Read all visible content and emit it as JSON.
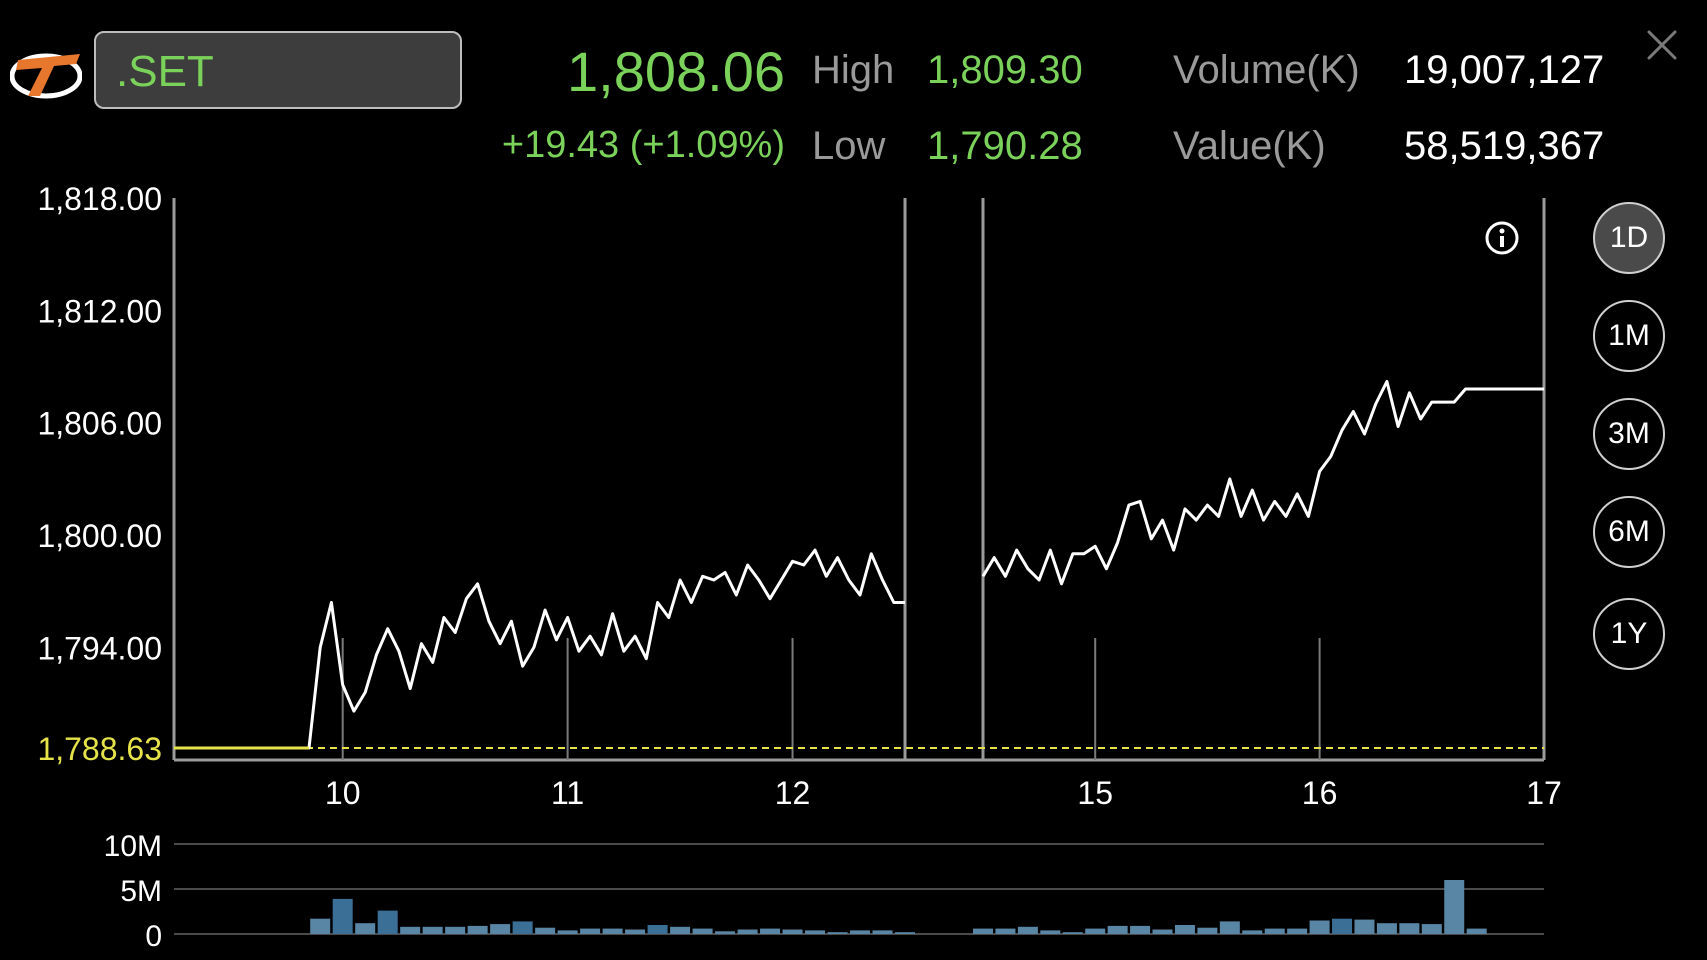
{
  "header": {
    "symbol": ".SET",
    "last_price": "1,808.06",
    "change": "+19.43 (+1.09%)",
    "high_label": "High",
    "high_value": "1,809.30",
    "low_label": "Low",
    "low_value": "1,790.28",
    "volume_label": "Volume(K)",
    "volume_value": "19,007,127",
    "value_label": "Value(K)",
    "value_value": "58,519,367"
  },
  "periods": [
    "1D",
    "1M",
    "3M",
    "6M",
    "1Y"
  ],
  "active_period": "1D",
  "colors": {
    "up": "#7bd25a",
    "prev_close": "#e6e34a",
    "line": "#ffffff",
    "volume": "#3b6f96",
    "volume_hi": "#5a86a6"
  },
  "chart_data": [
    {
      "type": "line",
      "y_ticks": [
        "1,818.00",
        "1,812.00",
        "1,806.00",
        "1,800.00",
        "1,794.00"
      ],
      "prev_close_label": "1,788.63",
      "ylim": [
        1788.63,
        1818.0
      ],
      "x_ticks": [
        {
          "label": "10",
          "hour": 10
        },
        {
          "label": "11",
          "hour": 11
        },
        {
          "label": "12",
          "hour": 12
        },
        {
          "label": "15",
          "hour": 15
        },
        {
          "label": "16",
          "hour": 16
        },
        {
          "label": "17",
          "hour": 17
        }
      ],
      "session_break": [
        12.5,
        14.5
      ],
      "series": [
        {
          "points": [
            [
              9.25,
              1788.63
            ],
            [
              9.85,
              1788.63
            ],
            [
              9.9,
              1794.0
            ],
            [
              9.95,
              1796.4
            ],
            [
              10.0,
              1792.0
            ],
            [
              10.05,
              1790.6
            ],
            [
              10.1,
              1791.6
            ],
            [
              10.15,
              1793.6
            ],
            [
              10.2,
              1795.0
            ],
            [
              10.25,
              1793.8
            ],
            [
              10.3,
              1791.8
            ],
            [
              10.35,
              1794.2
            ],
            [
              10.4,
              1793.2
            ],
            [
              10.45,
              1795.6
            ],
            [
              10.5,
              1794.8
            ],
            [
              10.55,
              1796.6
            ],
            [
              10.6,
              1797.4
            ],
            [
              10.65,
              1795.4
            ],
            [
              10.7,
              1794.2
            ],
            [
              10.75,
              1795.4
            ],
            [
              10.8,
              1793.0
            ],
            [
              10.85,
              1794.0
            ],
            [
              10.9,
              1796.0
            ],
            [
              10.95,
              1794.4
            ],
            [
              11.0,
              1795.6
            ],
            [
              11.05,
              1793.8
            ],
            [
              11.1,
              1794.6
            ],
            [
              11.15,
              1793.6
            ],
            [
              11.2,
              1795.8
            ],
            [
              11.25,
              1793.8
            ],
            [
              11.3,
              1794.6
            ],
            [
              11.35,
              1793.4
            ],
            [
              11.4,
              1796.4
            ],
            [
              11.45,
              1795.6
            ],
            [
              11.5,
              1797.6
            ],
            [
              11.55,
              1796.4
            ],
            [
              11.6,
              1797.8
            ],
            [
              11.65,
              1797.6
            ],
            [
              11.7,
              1798.0
            ],
            [
              11.75,
              1796.8
            ],
            [
              11.8,
              1798.4
            ],
            [
              11.85,
              1797.6
            ],
            [
              11.9,
              1796.6
            ],
            [
              11.95,
              1797.6
            ],
            [
              12.0,
              1798.6
            ],
            [
              12.05,
              1798.4
            ],
            [
              12.1,
              1799.2
            ],
            [
              12.15,
              1797.8
            ],
            [
              12.2,
              1798.8
            ],
            [
              12.25,
              1797.6
            ],
            [
              12.3,
              1796.8
            ],
            [
              12.35,
              1799.0
            ],
            [
              12.4,
              1797.6
            ],
            [
              12.45,
              1796.4
            ],
            [
              12.5,
              1796.4
            ]
          ]
        },
        {
          "points": [
            [
              14.5,
              1797.8
            ],
            [
              14.55,
              1798.8
            ],
            [
              14.6,
              1797.8
            ],
            [
              14.65,
              1799.2
            ],
            [
              14.7,
              1798.2
            ],
            [
              14.75,
              1797.6
            ],
            [
              14.8,
              1799.2
            ],
            [
              14.85,
              1797.4
            ],
            [
              14.9,
              1799.0
            ],
            [
              14.95,
              1799.0
            ],
            [
              15.0,
              1799.4
            ],
            [
              15.05,
              1798.2
            ],
            [
              15.1,
              1799.6
            ],
            [
              15.15,
              1801.6
            ],
            [
              15.2,
              1801.8
            ],
            [
              15.25,
              1799.8
            ],
            [
              15.3,
              1800.8
            ],
            [
              15.35,
              1799.2
            ],
            [
              15.4,
              1801.4
            ],
            [
              15.45,
              1800.8
            ],
            [
              15.5,
              1801.6
            ],
            [
              15.55,
              1801.0
            ],
            [
              15.6,
              1803.0
            ],
            [
              15.65,
              1801.0
            ],
            [
              15.7,
              1802.4
            ],
            [
              15.75,
              1800.8
            ],
            [
              15.8,
              1801.8
            ],
            [
              15.85,
              1801.0
            ],
            [
              15.9,
              1802.2
            ],
            [
              15.95,
              1801.0
            ],
            [
              16.0,
              1803.4
            ],
            [
              16.05,
              1804.2
            ],
            [
              16.1,
              1805.6
            ],
            [
              16.15,
              1806.6
            ],
            [
              16.2,
              1805.4
            ],
            [
              16.25,
              1807.0
            ],
            [
              16.3,
              1808.2
            ],
            [
              16.35,
              1805.8
            ],
            [
              16.4,
              1807.6
            ],
            [
              16.45,
              1806.2
            ],
            [
              16.5,
              1807.1
            ],
            [
              16.55,
              1807.1
            ],
            [
              16.6,
              1807.1
            ],
            [
              16.65,
              1807.8
            ],
            [
              17.0,
              1807.8
            ]
          ]
        }
      ]
    },
    {
      "type": "bar",
      "y_ticks": [
        "10M",
        "5M",
        "0"
      ],
      "ylim": [
        0,
        10
      ],
      "bars": [
        [
          9.9,
          1.7,
          0
        ],
        [
          10.0,
          3.9,
          1
        ],
        [
          10.1,
          1.2,
          0
        ],
        [
          10.2,
          2.6,
          1
        ],
        [
          10.3,
          0.8,
          0
        ],
        [
          10.4,
          0.8,
          0
        ],
        [
          10.5,
          0.8,
          0
        ],
        [
          10.6,
          0.9,
          0
        ],
        [
          10.7,
          1.1,
          0
        ],
        [
          10.8,
          1.4,
          1
        ],
        [
          10.9,
          0.7,
          0
        ],
        [
          11.0,
          0.4,
          0
        ],
        [
          11.1,
          0.6,
          0
        ],
        [
          11.2,
          0.6,
          0
        ],
        [
          11.3,
          0.5,
          0
        ],
        [
          11.4,
          1.0,
          1
        ],
        [
          11.5,
          0.8,
          0
        ],
        [
          11.6,
          0.6,
          0
        ],
        [
          11.7,
          0.3,
          0
        ],
        [
          11.8,
          0.5,
          0
        ],
        [
          11.9,
          0.6,
          0
        ],
        [
          12.0,
          0.5,
          0
        ],
        [
          12.1,
          0.4,
          0
        ],
        [
          12.2,
          0.2,
          0
        ],
        [
          12.3,
          0.4,
          0
        ],
        [
          12.4,
          0.4,
          0
        ],
        [
          12.5,
          0.2,
          0
        ],
        [
          14.5,
          0.6,
          0
        ],
        [
          14.6,
          0.6,
          0
        ],
        [
          14.7,
          0.8,
          0
        ],
        [
          14.8,
          0.4,
          0
        ],
        [
          14.9,
          0.2,
          0
        ],
        [
          15.0,
          0.6,
          0
        ],
        [
          15.1,
          0.9,
          0
        ],
        [
          15.2,
          0.9,
          0
        ],
        [
          15.3,
          0.5,
          0
        ],
        [
          15.4,
          1.0,
          0
        ],
        [
          15.5,
          0.7,
          0
        ],
        [
          15.6,
          1.4,
          0
        ],
        [
          15.7,
          0.4,
          0
        ],
        [
          15.8,
          0.6,
          0
        ],
        [
          15.9,
          0.6,
          0
        ],
        [
          16.0,
          1.5,
          0
        ],
        [
          16.1,
          1.7,
          1
        ],
        [
          16.2,
          1.6,
          0
        ],
        [
          16.3,
          1.2,
          0
        ],
        [
          16.4,
          1.2,
          0
        ],
        [
          16.5,
          1.1,
          0
        ],
        [
          16.6,
          6.0,
          0
        ],
        [
          16.7,
          0.6,
          0
        ]
      ]
    }
  ]
}
